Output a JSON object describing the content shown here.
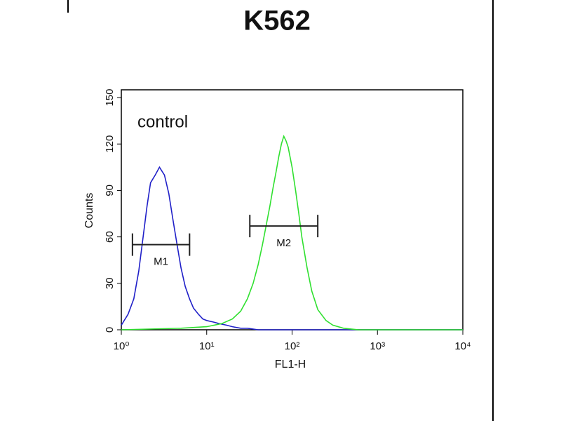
{
  "chart_data": {
    "type": "line",
    "title": "K562",
    "annotation": "control",
    "x_label": "FL1-H",
    "y_label": "Counts",
    "x_log": true,
    "xlim": [
      1,
      10000
    ],
    "xticks": [
      {
        "value": 1,
        "label": "10⁰"
      },
      {
        "value": 10,
        "label": "10¹"
      },
      {
        "value": 100,
        "label": "10²"
      },
      {
        "value": 1000,
        "label": "10³"
      },
      {
        "value": 10000,
        "label": "10⁴"
      }
    ],
    "ylim": [
      0,
      155
    ],
    "yticks": [
      0,
      30,
      60,
      90,
      120,
      150
    ],
    "series": [
      {
        "color": "#2020c8",
        "x": [
          1,
          1.2,
          1.4,
          1.6,
          1.8,
          2,
          2.2,
          2.5,
          2.8,
          3.2,
          3.6,
          4,
          4.5,
          5,
          5.6,
          6.3,
          7,
          8,
          9,
          10,
          12,
          14,
          17,
          20,
          25,
          30,
          40,
          60,
          100,
          1000,
          10000
        ],
        "values": [
          3,
          10,
          20,
          38,
          60,
          80,
          95,
          100,
          105,
          100,
          88,
          72,
          55,
          40,
          28,
          20,
          14,
          10,
          7,
          6,
          5,
          4,
          3,
          2,
          1,
          1,
          0,
          0,
          0,
          0,
          0
        ]
      },
      {
        "color": "#30e030",
        "x": [
          1,
          5,
          10,
          15,
          20,
          25,
          30,
          35,
          40,
          45,
          50,
          55,
          60,
          65,
          70,
          75,
          80,
          85,
          90,
          100,
          110,
          120,
          130,
          150,
          170,
          200,
          250,
          300,
          400,
          600,
          1000,
          10000
        ],
        "values": [
          0,
          1,
          2,
          4,
          7,
          12,
          20,
          30,
          42,
          55,
          68,
          80,
          92,
          102,
          112,
          120,
          125,
          122,
          118,
          105,
          90,
          75,
          60,
          40,
          25,
          13,
          6,
          3,
          1,
          0,
          0,
          0
        ]
      }
    ],
    "markers": [
      {
        "label": "M1",
        "x": [
          1.35,
          6.3
        ],
        "y": 55
      },
      {
        "label": "M2",
        "x": [
          32,
          200
        ],
        "y": 67
      }
    ]
  }
}
